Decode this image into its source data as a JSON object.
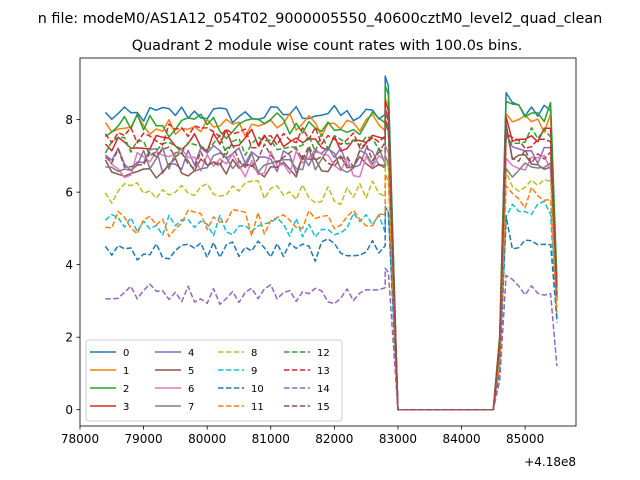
{
  "suptitle": "n file: modeM0/AS1A12_054T02_9000005550_40600cztM0_level2_quad_clean",
  "chart_data": {
    "type": "line",
    "title": "Quadrant 2 module wise count rates with 100.0s bins.",
    "xlabel": "",
    "ylabel": "",
    "x_offset_label": "+4.18e8",
    "xlim": [
      78000,
      85800
    ],
    "ylim": [
      -0.45,
      9.7
    ],
    "xticks": [
      "78000",
      "79000",
      "80000",
      "81000",
      "82000",
      "83000",
      "84000",
      "85000"
    ],
    "yticks": [
      "0",
      "2",
      "4",
      "6",
      "8"
    ],
    "grid": false,
    "legend_position": "lower-left",
    "legend_columns": 4,
    "gap": {
      "drop_start": 82850,
      "zero_start": 83000,
      "zero_end": 84500,
      "rise_end": 84650,
      "segment2_start": 84700,
      "segment2_end": 85450,
      "final_x": 85500
    },
    "series": [
      {
        "name": "0",
        "color": "#1f77b4",
        "dash": "solid",
        "mean": 8.15,
        "amp": 0.25,
        "peak": 9.2,
        "end": 8.3,
        "tail": 3.2
      },
      {
        "name": "1",
        "color": "#ff7f0e",
        "dash": "solid",
        "mean": 7.85,
        "amp": 0.3,
        "peak": 8.6,
        "end": 7.9,
        "tail": 3.0
      },
      {
        "name": "2",
        "color": "#2ca02c",
        "dash": "solid",
        "mean": 7.85,
        "amp": 0.35,
        "peak": 8.95,
        "end": 8.2,
        "tail": 3.6
      },
      {
        "name": "3",
        "color": "#d62728",
        "dash": "solid",
        "mean": 7.4,
        "amp": 0.3,
        "peak": 8.5,
        "end": 7.5,
        "tail": 3.2
      },
      {
        "name": "4",
        "color": "#9467bd",
        "dash": "solid",
        "mean": 6.9,
        "amp": 0.35,
        "peak": 8.0,
        "end": 7.0,
        "tail": 3.3
      },
      {
        "name": "5",
        "color": "#8c564b",
        "dash": "solid",
        "mean": 6.7,
        "amp": 0.3,
        "peak": 8.3,
        "end": 6.9,
        "tail": 3.1
      },
      {
        "name": "6",
        "color": "#e377c2",
        "dash": "solid",
        "mean": 6.8,
        "amp": 0.35,
        "peak": 7.3,
        "end": 6.9,
        "tail": 3.1
      },
      {
        "name": "7",
        "color": "#7f7f7f",
        "dash": "solid",
        "mean": 6.9,
        "amp": 0.35,
        "peak": 7.0,
        "end": 6.7,
        "tail": 3.0
      },
      {
        "name": "8",
        "color": "#bcbd22",
        "dash": "dashed",
        "mean": 6.0,
        "amp": 0.3,
        "peak": 6.9,
        "end": 6.2,
        "tail": 2.6
      },
      {
        "name": "9",
        "color": "#17becf",
        "dash": "dashed",
        "mean": 5.1,
        "amp": 0.3,
        "peak": 5.6,
        "end": 5.5,
        "tail": 2.4
      },
      {
        "name": "10",
        "color": "#1f77b4",
        "dash": "dashed",
        "mean": 4.4,
        "amp": 0.3,
        "peak": 5.6,
        "end": 4.6,
        "tail": 2.5
      },
      {
        "name": "11",
        "color": "#ff7f0e",
        "dash": "dashed",
        "mean": 5.15,
        "amp": 0.35,
        "peak": 6.5,
        "end": 5.8,
        "tail": 2.7
      },
      {
        "name": "12",
        "color": "#2ca02c",
        "dash": "dashed",
        "mean": 7.3,
        "amp": 0.3,
        "peak": 7.9,
        "end": 7.6,
        "tail": 3.4
      },
      {
        "name": "13",
        "color": "#d62728",
        "dash": "dashed",
        "mean": 7.55,
        "amp": 0.3,
        "peak": 8.0,
        "end": 7.4,
        "tail": 3.4
      },
      {
        "name": "14",
        "color": "#9467bd",
        "dash": "dashed",
        "mean": 3.2,
        "amp": 0.25,
        "peak": 3.9,
        "end": 3.4,
        "tail": 1.2
      },
      {
        "name": "15",
        "color": "#8c564b",
        "dash": "dashed",
        "mean": 7.0,
        "amp": 0.35,
        "peak": 8.2,
        "end": 7.0,
        "tail": 3.1
      }
    ]
  }
}
